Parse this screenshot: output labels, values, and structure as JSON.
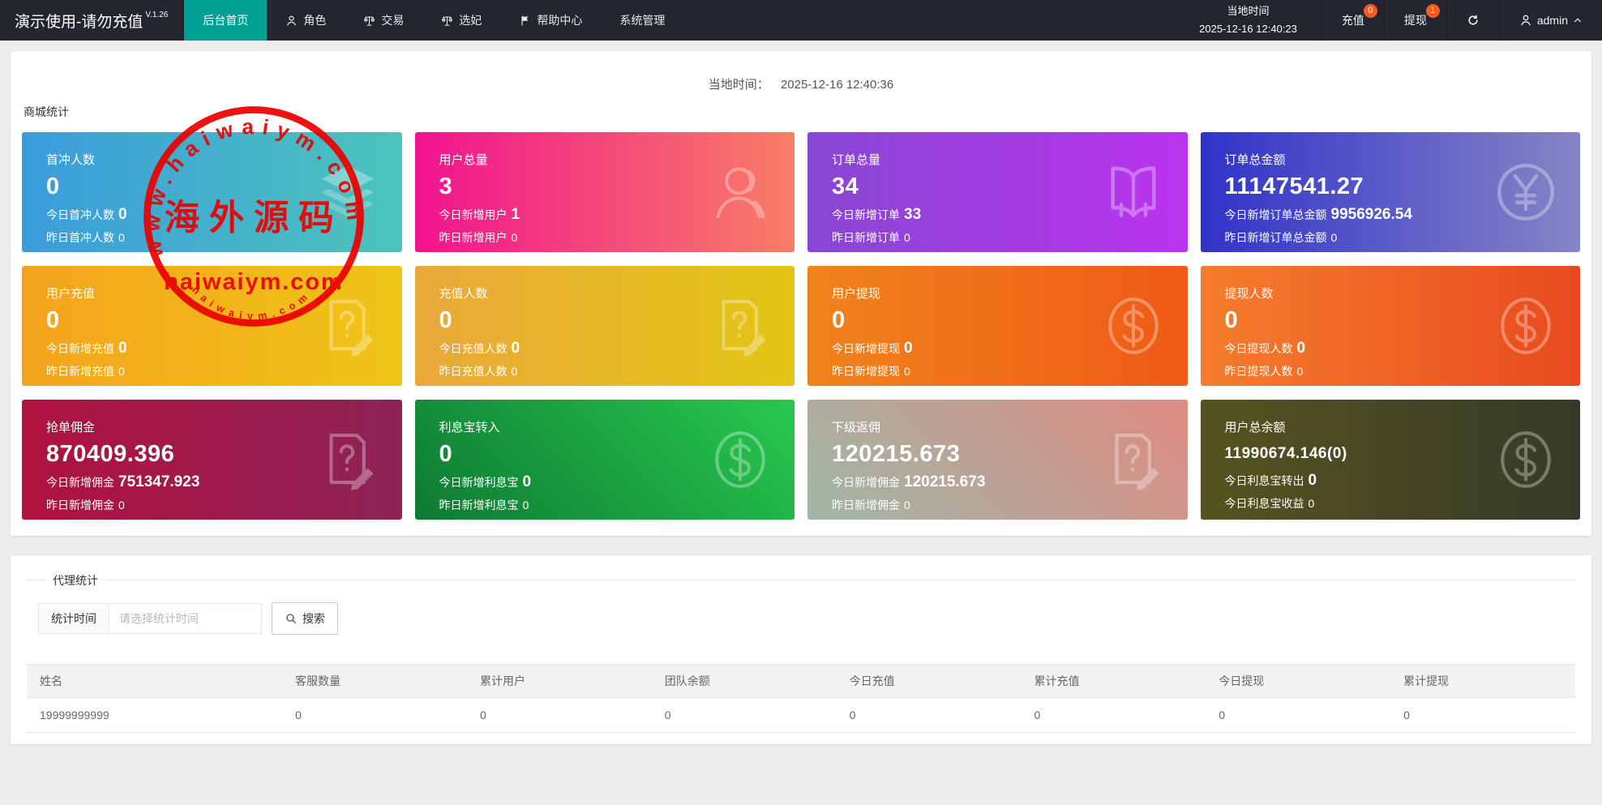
{
  "navbar": {
    "brand": "演示使用-请勿充值",
    "version": "V.1.26",
    "menu": [
      {
        "name": "home",
        "label": "后台首页",
        "icon": null,
        "active": true
      },
      {
        "name": "roles",
        "label": "角色",
        "icon": "user-icon",
        "active": false
      },
      {
        "name": "trade",
        "label": "交易",
        "icon": "scales-icon",
        "active": false
      },
      {
        "name": "xuanfei",
        "label": "选妃",
        "icon": "scales-icon",
        "active": false
      },
      {
        "name": "help",
        "label": "帮助中心",
        "icon": "flag-icon",
        "active": false
      },
      {
        "name": "system",
        "label": "系统管理",
        "icon": null,
        "active": false
      }
    ],
    "local_time_label": "当地时间",
    "local_time_value": "2025-12-16 12:40:23",
    "recharge": {
      "label": "充值",
      "badge": "0",
      "badge_color": "#ff5722"
    },
    "withdraw": {
      "label": "提现",
      "badge": "1",
      "badge_color": "#ff5722"
    },
    "username": "admin",
    "active_tab_color": "#01a094"
  },
  "content": {
    "time_line": {
      "label": "当地时间：",
      "value": "2025-12-16 12:40:36"
    },
    "stats_section_title": "商城统计",
    "cards": [
      {
        "id": "first-charge-users",
        "title": "首冲人数",
        "value": "0",
        "value_small": false,
        "today_label": "今日首冲人数",
        "today_value": "0",
        "yesterday_label": "昨日首冲人数",
        "yesterday_value": "0",
        "icon": "layers-icon",
        "gradient_direction": "to right",
        "gradient_from": "#3b9cdc",
        "gradient_to": "#4cc4bb"
      },
      {
        "id": "total-users",
        "title": "用户总量",
        "value": "3",
        "value_small": false,
        "today_label": "今日新增用户",
        "today_value": "1",
        "yesterday_label": "昨日新增用户",
        "yesterday_value": "0",
        "icon": "person-icon",
        "gradient_direction": "to right",
        "gradient_from": "#f1138f",
        "gradient_to": "#f87e66"
      },
      {
        "id": "total-orders",
        "title": "订单总量",
        "value": "34",
        "value_small": false,
        "today_label": "今日新增订单",
        "today_value": "33",
        "yesterday_label": "昨日新增订单",
        "yesterday_value": "0",
        "icon": "book-icon",
        "gradient_direction": "to right",
        "gradient_from": "#8747d3",
        "gradient_to": "#bb33ee"
      },
      {
        "id": "total-order-amount",
        "title": "订单总金额",
        "value": "11147541.27",
        "value_small": false,
        "today_label": "今日新增订单总金额",
        "today_value": "9956926.54",
        "yesterday_label": "昨日新增订单总金额",
        "yesterday_value": "0",
        "icon": "yen-circle-icon",
        "gradient_direction": "to right",
        "gradient_from": "#3033c9",
        "gradient_to": "#8784c6"
      },
      {
        "id": "user-recharge",
        "title": "用户充值",
        "value": "0",
        "value_small": false,
        "today_label": "今日新增充值",
        "today_value": "0",
        "yesterday_label": "昨日新增充值",
        "yesterday_value": "0",
        "icon": "doc-question-icon",
        "gradient_direction": "to right",
        "gradient_from": "#f5a31d",
        "gradient_to": "#efc517"
      },
      {
        "id": "recharge-users",
        "title": "充值人数",
        "value": "0",
        "value_small": false,
        "today_label": "今日充值人数",
        "today_value": "0",
        "yesterday_label": "昨日充值人数",
        "yesterday_value": "0",
        "icon": "doc-question-icon",
        "gradient_direction": "to right",
        "gradient_from": "#eaa83b",
        "gradient_to": "#e2c614"
      },
      {
        "id": "user-withdraw",
        "title": "用户提现",
        "value": "0",
        "value_small": false,
        "today_label": "今日新增提现",
        "today_value": "0",
        "yesterday_label": "昨日新增提现",
        "yesterday_value": "0",
        "icon": "dollar-circle-icon",
        "gradient_direction": "to right",
        "gradient_from": "#f0831d",
        "gradient_to": "#ef5a16"
      },
      {
        "id": "withdraw-users",
        "title": "提现人数",
        "value": "0",
        "value_small": false,
        "today_label": "今日提现人数",
        "today_value": "0",
        "yesterday_label": "昨日提现人数",
        "yesterday_value": "0",
        "icon": "dollar-circle-icon",
        "gradient_direction": "to right",
        "gradient_from": "#f57d2c",
        "gradient_to": "#e84a20"
      },
      {
        "id": "grab-commission",
        "title": "抢单佣金",
        "value": "870409.396",
        "value_small": false,
        "today_label": "今日新增佣金",
        "today_value": "751347.923",
        "yesterday_label": "昨日新增佣金",
        "yesterday_value": "0",
        "icon": "doc-question-icon",
        "gradient_direction": "to right",
        "gradient_from": "#b11240",
        "gradient_to": "#8d2357"
      },
      {
        "id": "interest-transfer-in",
        "title": "利息宝转入",
        "value": "0",
        "value_small": false,
        "today_label": "今日新增利息宝",
        "today_value": "0",
        "yesterday_label": "昨日新增利息宝",
        "yesterday_value": "0",
        "icon": "dollar-circle-icon",
        "gradient_direction": "45deg",
        "gradient_from": "#0e7a33",
        "gradient_to": "#28c94f"
      },
      {
        "id": "sub-rebate",
        "title": "下级返佣",
        "value": "120215.673",
        "value_small": false,
        "today_label": "今日新增佣金",
        "today_value": "120215.673",
        "yesterday_label": "昨日新增佣金",
        "yesterday_value": "0",
        "icon": "doc-question-icon",
        "gradient_direction": "45deg",
        "gradient_from": "#9fb7a7",
        "gradient_to": "#df8b82"
      },
      {
        "id": "user-total-balance",
        "title": "用户总余额",
        "value": "11990674.146(0)",
        "value_small": true,
        "today_label": "今日利息宝转出",
        "today_value": "0",
        "yesterday_label": "今日利息宝收益",
        "yesterday_value": "0",
        "icon": "dollar-circle-icon",
        "gradient_direction": "to right",
        "gradient_from": "#575320",
        "gradient_to": "#363a28"
      }
    ],
    "agent_section": {
      "legend": "代理统计",
      "filter_label": "统计时间",
      "filter_placeholder": "请选择统计时间",
      "search_label": "搜索"
    },
    "table": {
      "headers": [
        "姓名",
        "客服数量",
        "累计用户",
        "团队余额",
        "今日充值",
        "累计充值",
        "今日提现",
        "累计提现"
      ],
      "rows": [
        [
          "19999999999",
          "0",
          "0",
          "0",
          "0",
          "0",
          "0",
          "0"
        ]
      ]
    }
  },
  "watermark": {
    "ring_text": "www.haiwaiym.com",
    "center_text": "海外源码",
    "domain_text": "haiwaiym.com",
    "bottom_text": "haiwaiym.com",
    "color": "#ec0000"
  }
}
